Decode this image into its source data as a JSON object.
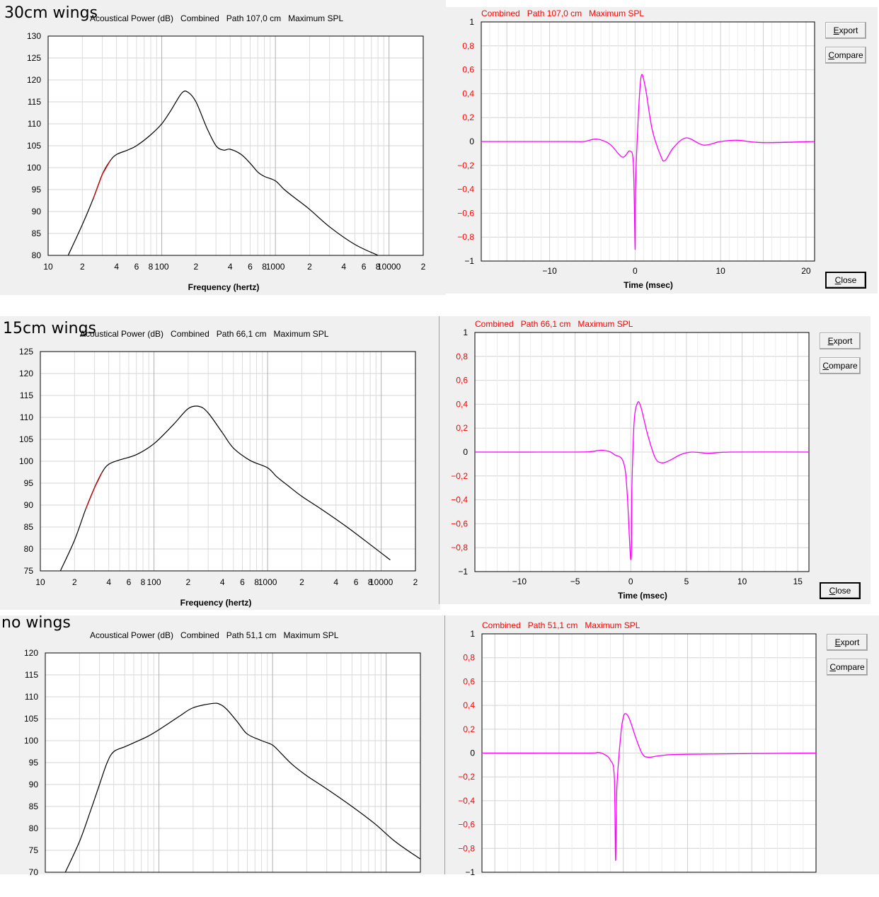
{
  "sections": [
    {
      "label": "30cm wings"
    },
    {
      "label": "15cm wings"
    },
    {
      "label": "no wings"
    }
  ],
  "buttons": {
    "export": "Export",
    "compare": "Compare",
    "close": "Close"
  },
  "colors": {
    "spl_line": "#000000",
    "spl_low_segment": "#cc0000",
    "impulse_line": "#ff00ff",
    "grid": "#d4d4d4",
    "negative_tick": "#ff0000"
  },
  "chart_data": [
    {
      "type": "line",
      "panel": "30cm wings",
      "title": "Acoustical Power (dB)   Combined   Path 107,0 cm   Maximum SPL",
      "xlabel": "Frequency (hertz)",
      "ylabel": "",
      "xscale": "log",
      "xlim": [
        10,
        20000
      ],
      "ylim": [
        80,
        130
      ],
      "yticks": [
        "80",
        "85",
        "90",
        "95",
        "100",
        "105",
        "110",
        "115",
        "120",
        "125",
        "130"
      ],
      "xticks": [
        "10",
        "2",
        "4",
        "6",
        "8",
        "100",
        "2",
        "4",
        "6",
        "8",
        "1000",
        "2",
        "4",
        "6",
        "8",
        "10000",
        "2"
      ],
      "grid": true,
      "x": [
        15,
        20,
        25,
        30,
        35,
        40,
        50,
        60,
        80,
        100,
        120,
        150,
        170,
        200,
        250,
        300,
        350,
        400,
        500,
        600,
        700,
        800,
        1000,
        1200,
        1500,
        2000,
        3000,
        5000,
        8000
      ],
      "y": [
        80,
        87,
        93,
        98.5,
        101.5,
        103,
        104,
        105,
        107.5,
        110,
        113,
        117,
        117.2,
        115,
        109,
        105,
        104,
        104.2,
        103,
        101,
        99,
        98,
        97,
        95,
        93,
        90.5,
        86.5,
        82.5,
        80
      ]
    },
    {
      "type": "line",
      "panel": "30cm wings",
      "title": "Combined   Path 107,0 cm   Maximum SPL",
      "xlabel": "Time (msec)",
      "ylabel": "",
      "xlim": [
        -18,
        21
      ],
      "ylim": [
        -1,
        1
      ],
      "yticks": [
        "−1",
        "−0,8",
        "−0,6",
        "−0,4",
        "−0,2",
        "0",
        "0,2",
        "0,4",
        "0,6",
        "0,8",
        "1"
      ],
      "xticks": [
        "−10",
        "0",
        "10",
        "20"
      ],
      "grid": true,
      "x": [
        -18,
        -8,
        -6,
        -4.5,
        -3,
        -1.5,
        -0.6,
        -0.2,
        0,
        0.05,
        0.3,
        0.7,
        1.2,
        2,
        3,
        3.5,
        4.5,
        6,
        8,
        10,
        12,
        15,
        21
      ],
      "y": [
        0,
        0,
        0,
        0.02,
        -0.02,
        -0.13,
        -0.08,
        -0.2,
        -0.9,
        -0.4,
        0.1,
        0.54,
        0.45,
        0.1,
        -0.12,
        -0.16,
        -0.05,
        0.03,
        -0.03,
        0,
        0.01,
        -0.01,
        0
      ]
    },
    {
      "type": "line",
      "panel": "15cm wings",
      "title": "Acoustical Power (dB)   Combined   Path 66,1 cm   Maximum SPL",
      "xlabel": "Frequency (hertz)",
      "ylabel": "",
      "xscale": "log",
      "xlim": [
        10,
        20000
      ],
      "ylim": [
        75,
        125
      ],
      "yticks": [
        "75",
        "80",
        "85",
        "90",
        "95",
        "100",
        "105",
        "110",
        "115",
        "120",
        "125"
      ],
      "xticks": [
        "10",
        "2",
        "4",
        "6",
        "8",
        "100",
        "2",
        "4",
        "6",
        "8",
        "1000",
        "2",
        "4",
        "6",
        "8",
        "10000",
        "2"
      ],
      "grid": true,
      "x": [
        15,
        20,
        25,
        30,
        35,
        40,
        50,
        70,
        100,
        150,
        200,
        250,
        300,
        400,
        500,
        700,
        1000,
        1200,
        1500,
        2000,
        3000,
        5000,
        8000,
        12000
      ],
      "y": [
        75,
        82,
        89,
        94,
        97.5,
        99.3,
        100.3,
        101.5,
        104,
        108.5,
        112,
        112.5,
        111,
        106.5,
        103,
        100.2,
        98.5,
        96.5,
        94.5,
        92,
        89,
        85,
        81,
        77.5
      ]
    },
    {
      "type": "line",
      "panel": "15cm wings",
      "title": "Combined   Path 66,1 cm   Maximum SPL",
      "xlabel": "Time (msec)",
      "ylabel": "",
      "xlim": [
        -14,
        16
      ],
      "ylim": [
        -1,
        1
      ],
      "yticks": [
        "−1",
        "−0,8",
        "−0,6",
        "−0,4",
        "−0,2",
        "0",
        "0,2",
        "0,4",
        "0,6",
        "0,8",
        "1"
      ],
      "xticks": [
        "−10",
        "−5",
        "0",
        "5",
        "10",
        "15"
      ],
      "grid": true,
      "x": [
        -14,
        -5,
        -3.5,
        -2.5,
        -1.5,
        -0.5,
        0,
        0.1,
        0.3,
        0.6,
        0.9,
        1.5,
        2.2,
        2.8,
        3.5,
        4.5,
        5.5,
        7,
        9,
        16
      ],
      "y": [
        0,
        0,
        0.005,
        0.015,
        -0.02,
        -0.15,
        -0.9,
        -0.3,
        0.25,
        0.41,
        0.38,
        0.15,
        -0.05,
        -0.09,
        -0.07,
        -0.02,
        0,
        -0.01,
        0,
        0
      ]
    },
    {
      "type": "line",
      "panel": "no wings",
      "title": "Acoustical Power (dB)   Combined   Path 51,1 cm   Maximum SPL",
      "xlabel": "",
      "ylabel": "",
      "xscale": "log",
      "xlim": [
        10,
        20000
      ],
      "ylim": [
        70,
        120
      ],
      "yticks": [
        "70",
        "75",
        "80",
        "85",
        "90",
        "95",
        "100",
        "105",
        "110",
        "115",
        "120"
      ],
      "xticks": [],
      "grid": true,
      "x": [
        15,
        20,
        25,
        30,
        35,
        40,
        50,
        60,
        80,
        100,
        150,
        200,
        300,
        350,
        400,
        500,
        600,
        800,
        1000,
        1200,
        1500,
        2000,
        3000,
        5000,
        8000,
        12000,
        20000
      ],
      "y": [
        70,
        77,
        84,
        90,
        95,
        97.5,
        98.6,
        99.5,
        101,
        102.5,
        105.5,
        107.5,
        108.5,
        108.2,
        107,
        104,
        101.5,
        100,
        99,
        97,
        94.5,
        92,
        89,
        85,
        81,
        77,
        73
      ]
    },
    {
      "type": "line",
      "panel": "no wings",
      "title": "Combined   Path 51,1 cm   Maximum SPL",
      "xlabel": "",
      "ylabel": "",
      "xlim": [
        -11,
        15
      ],
      "ylim": [
        -1,
        1
      ],
      "yticks": [
        "−1",
        "−0,8",
        "−0,6",
        "−0,4",
        "−0,2",
        "0",
        "0,2",
        "0,4",
        "0,6",
        "0,8",
        "1"
      ],
      "xticks": [],
      "grid": true,
      "x": [
        -11,
        -3,
        -2,
        -1.5,
        -1,
        -0.7,
        -0.6,
        -0.5,
        -0.2,
        0,
        0.2,
        0.5,
        1,
        1.5,
        2,
        3,
        5,
        15
      ],
      "y": [
        0,
        0,
        0.005,
        -0.01,
        -0.06,
        -0.2,
        -0.9,
        -0.3,
        0.15,
        0.3,
        0.33,
        0.28,
        0.12,
        -0.01,
        -0.035,
        -0.02,
        -0.01,
        0
      ]
    }
  ]
}
